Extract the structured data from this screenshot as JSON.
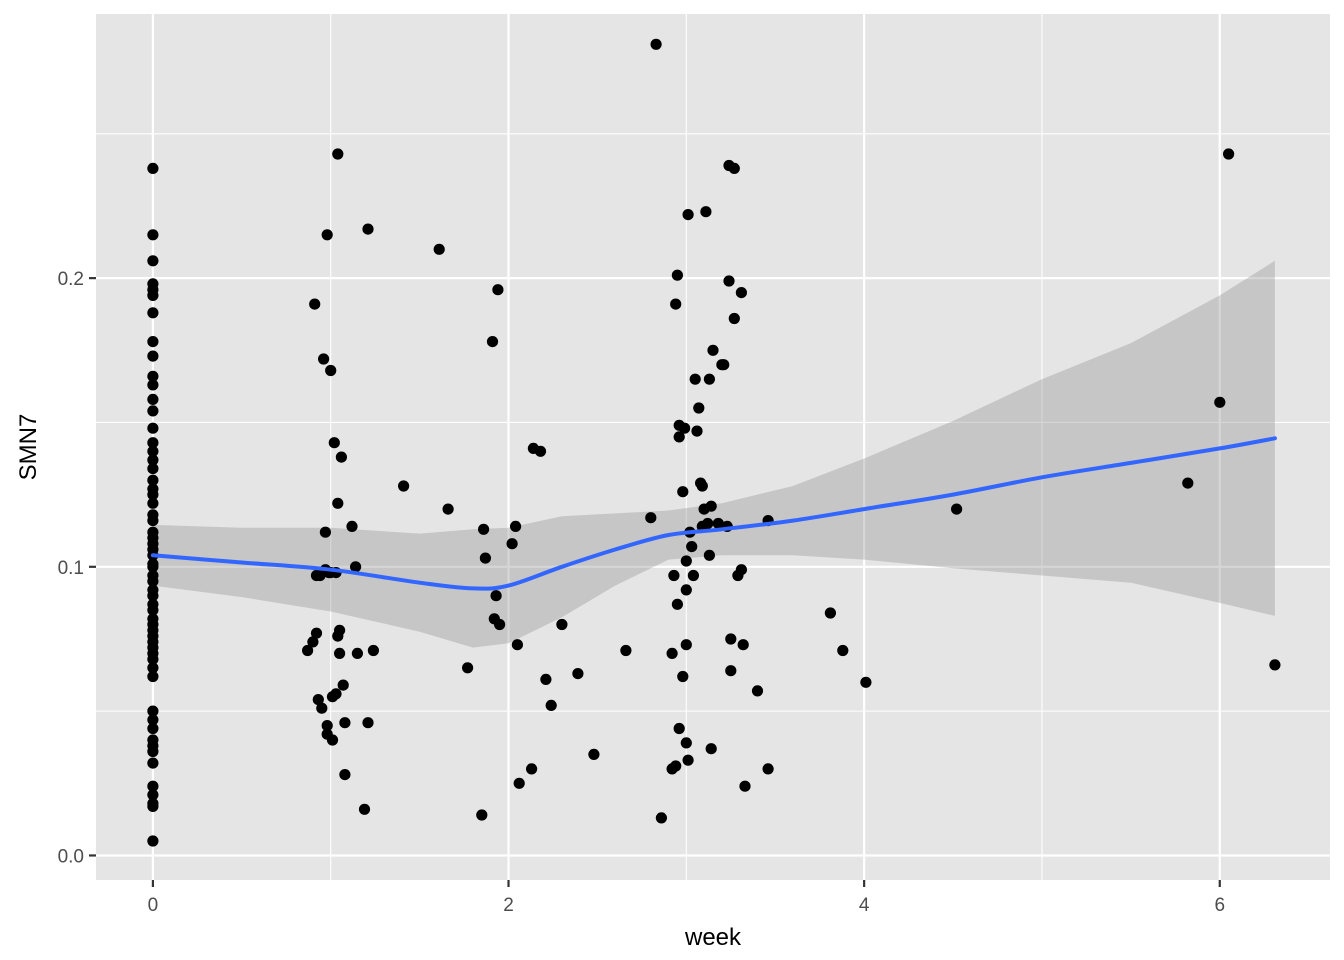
{
  "chart_data": {
    "type": "scatter",
    "xlabel": "week",
    "ylabel": "SMN7",
    "xlim": [
      -0.32,
      6.62
    ],
    "ylim": [
      -0.0085,
      0.2915
    ],
    "x_ticks": [
      0,
      2,
      4,
      6
    ],
    "x_tick_labels": [
      "0",
      "2",
      "4",
      "6"
    ],
    "x_minor_ticks": [
      1,
      3,
      5
    ],
    "y_ticks": [
      0.0,
      0.1,
      0.2
    ],
    "y_tick_labels": [
      "0.0",
      "0.1",
      "0.2"
    ],
    "y_minor_ticks": [
      0.05,
      0.15,
      0.25
    ],
    "grid": true,
    "colors": {
      "panel": "#e5e5e5",
      "grid": "#ffffff",
      "points": "#000000",
      "smooth_line": "#3366ff",
      "ribbon": "#999999"
    },
    "points": [
      [
        0,
        0.238
      ],
      [
        0,
        0.215
      ],
      [
        0,
        0.206
      ],
      [
        0,
        0.198
      ],
      [
        0,
        0.196
      ],
      [
        0,
        0.194
      ],
      [
        0,
        0.188
      ],
      [
        0,
        0.178
      ],
      [
        0,
        0.173
      ],
      [
        0,
        0.166
      ],
      [
        0,
        0.163
      ],
      [
        0,
        0.158
      ],
      [
        0,
        0.154
      ],
      [
        0,
        0.148
      ],
      [
        0,
        0.143
      ],
      [
        0,
        0.14
      ],
      [
        0,
        0.137
      ],
      [
        0,
        0.134
      ],
      [
        0,
        0.13
      ],
      [
        0,
        0.127
      ],
      [
        0,
        0.125
      ],
      [
        0,
        0.122
      ],
      [
        0,
        0.118
      ],
      [
        0,
        0.116
      ],
      [
        0,
        0.112
      ],
      [
        0,
        0.11
      ],
      [
        0,
        0.108
      ],
      [
        0,
        0.106
      ],
      [
        0,
        0.104
      ],
      [
        0,
        0.101
      ],
      [
        0,
        0.1
      ],
      [
        0,
        0.097
      ],
      [
        0,
        0.095
      ],
      [
        0,
        0.092
      ],
      [
        0,
        0.09
      ],
      [
        0,
        0.087
      ],
      [
        0,
        0.085
      ],
      [
        0,
        0.082
      ],
      [
        0,
        0.08
      ],
      [
        0,
        0.078
      ],
      [
        0,
        0.076
      ],
      [
        0,
        0.074
      ],
      [
        0,
        0.072
      ],
      [
        0,
        0.07
      ],
      [
        0,
        0.068
      ],
      [
        0,
        0.065
      ],
      [
        0,
        0.062
      ],
      [
        0,
        0.05
      ],
      [
        0,
        0.047
      ],
      [
        0,
        0.044
      ],
      [
        0,
        0.04
      ],
      [
        0,
        0.038
      ],
      [
        0,
        0.036
      ],
      [
        0,
        0.032
      ],
      [
        0,
        0.024
      ],
      [
        0,
        0.021
      ],
      [
        0,
        0.018
      ],
      [
        0,
        0.017
      ],
      [
        0,
        0.005
      ],
      [
        0.87,
        0.071
      ],
      [
        0.9,
        0.074
      ],
      [
        0.91,
        0.191
      ],
      [
        0.92,
        0.077
      ],
      [
        0.92,
        0.097
      ],
      [
        0.93,
        0.054
      ],
      [
        0.94,
        0.097
      ],
      [
        0.95,
        0.051
      ],
      [
        0.96,
        0.172
      ],
      [
        0.97,
        0.099
      ],
      [
        0.97,
        0.112
      ],
      [
        0.98,
        0.042
      ],
      [
        0.98,
        0.045
      ],
      [
        0.98,
        0.215
      ],
      [
        0.99,
        0.098
      ],
      [
        1.0,
        0.168
      ],
      [
        1.0,
        0.098
      ],
      [
        1.01,
        0.055
      ],
      [
        1.01,
        0.04
      ],
      [
        1.02,
        0.143
      ],
      [
        1.03,
        0.056
      ],
      [
        1.03,
        0.098
      ],
      [
        1.04,
        0.243
      ],
      [
        1.04,
        0.122
      ],
      [
        1.04,
        0.076
      ],
      [
        1.05,
        0.078
      ],
      [
        1.05,
        0.07
      ],
      [
        1.06,
        0.138
      ],
      [
        1.07,
        0.059
      ],
      [
        1.08,
        0.046
      ],
      [
        1.08,
        0.028
      ],
      [
        1.12,
        0.114
      ],
      [
        1.14,
        0.1
      ],
      [
        1.15,
        0.07
      ],
      [
        1.19,
        0.016
      ],
      [
        1.21,
        0.217
      ],
      [
        1.21,
        0.046
      ],
      [
        1.24,
        0.071
      ],
      [
        1.41,
        0.128
      ],
      [
        1.61,
        0.21
      ],
      [
        1.66,
        0.12
      ],
      [
        1.77,
        0.065
      ],
      [
        1.85,
        0.014
      ],
      [
        1.86,
        0.113
      ],
      [
        1.87,
        0.103
      ],
      [
        1.91,
        0.178
      ],
      [
        1.92,
        0.082
      ],
      [
        1.93,
        0.09
      ],
      [
        1.94,
        0.196
      ],
      [
        1.95,
        0.08
      ],
      [
        2.02,
        0.108
      ],
      [
        2.04,
        0.114
      ],
      [
        2.05,
        0.073
      ],
      [
        2.06,
        0.025
      ],
      [
        2.13,
        0.03
      ],
      [
        2.14,
        0.141
      ],
      [
        2.18,
        0.14
      ],
      [
        2.21,
        0.061
      ],
      [
        2.24,
        0.052
      ],
      [
        2.3,
        0.08
      ],
      [
        2.39,
        0.063
      ],
      [
        2.48,
        0.035
      ],
      [
        2.66,
        0.071
      ],
      [
        2.8,
        0.117
      ],
      [
        2.83,
        0.281
      ],
      [
        2.86,
        0.013
      ],
      [
        2.92,
        0.07
      ],
      [
        2.92,
        0.03
      ],
      [
        2.93,
        0.097
      ],
      [
        2.94,
        0.031
      ],
      [
        2.94,
        0.191
      ],
      [
        2.95,
        0.201
      ],
      [
        2.95,
        0.087
      ],
      [
        2.96,
        0.044
      ],
      [
        2.96,
        0.149
      ],
      [
        2.96,
        0.145
      ],
      [
        2.98,
        0.062
      ],
      [
        2.98,
        0.126
      ],
      [
        2.99,
        0.148
      ],
      [
        3.0,
        0.092
      ],
      [
        3.0,
        0.102
      ],
      [
        3.0,
        0.073
      ],
      [
        3.0,
        0.039
      ],
      [
        3.01,
        0.033
      ],
      [
        3.01,
        0.222
      ],
      [
        3.02,
        0.112
      ],
      [
        3.03,
        0.107
      ],
      [
        3.04,
        0.097
      ],
      [
        3.05,
        0.165
      ],
      [
        3.06,
        0.147
      ],
      [
        3.07,
        0.155
      ],
      [
        3.08,
        0.129
      ],
      [
        3.09,
        0.114
      ],
      [
        3.09,
        0.128
      ],
      [
        3.1,
        0.12
      ],
      [
        3.11,
        0.223
      ],
      [
        3.12,
        0.115
      ],
      [
        3.13,
        0.165
      ],
      [
        3.13,
        0.104
      ],
      [
        3.14,
        0.121
      ],
      [
        3.14,
        0.037
      ],
      [
        3.15,
        0.175
      ],
      [
        3.18,
        0.115
      ],
      [
        3.2,
        0.17
      ],
      [
        3.21,
        0.17
      ],
      [
        3.23,
        0.114
      ],
      [
        3.24,
        0.239
      ],
      [
        3.24,
        0.199
      ],
      [
        3.25,
        0.075
      ],
      [
        3.25,
        0.064
      ],
      [
        3.27,
        0.238
      ],
      [
        3.27,
        0.186
      ],
      [
        3.29,
        0.097
      ],
      [
        3.31,
        0.195
      ],
      [
        3.31,
        0.099
      ],
      [
        3.32,
        0.073
      ],
      [
        3.33,
        0.024
      ],
      [
        3.4,
        0.057
      ],
      [
        3.46,
        0.03
      ],
      [
        3.46,
        0.116
      ],
      [
        3.81,
        0.084
      ],
      [
        3.88,
        0.071
      ],
      [
        4.01,
        0.06
      ],
      [
        4.52,
        0.12
      ],
      [
        5.82,
        0.129
      ],
      [
        6.0,
        0.157
      ],
      [
        6.05,
        0.243
      ],
      [
        6.31,
        0.066
      ]
    ],
    "smooth": {
      "method": "loess",
      "x": [
        0,
        0.5,
        1.0,
        1.5,
        1.8,
        2.0,
        2.3,
        2.6,
        2.9,
        3.2,
        3.6,
        4.0,
        4.5,
        5.0,
        5.5,
        6.0,
        6.31
      ],
      "y": [
        0.104,
        0.1015,
        0.099,
        0.0945,
        0.0925,
        0.0935,
        0.1,
        0.106,
        0.111,
        0.113,
        0.116,
        0.12,
        0.125,
        0.131,
        0.136,
        0.141,
        0.1445
      ],
      "lower": [
        0.0935,
        0.0895,
        0.0845,
        0.0775,
        0.072,
        0.0735,
        0.0825,
        0.0935,
        0.1025,
        0.104,
        0.104,
        0.1025,
        0.0995,
        0.097,
        0.0945,
        0.0875,
        0.083
      ],
      "upper": [
        0.1145,
        0.1135,
        0.1135,
        0.1115,
        0.113,
        0.1135,
        0.1175,
        0.1185,
        0.1195,
        0.122,
        0.128,
        0.1375,
        0.1505,
        0.165,
        0.1775,
        0.194,
        0.206
      ]
    }
  }
}
